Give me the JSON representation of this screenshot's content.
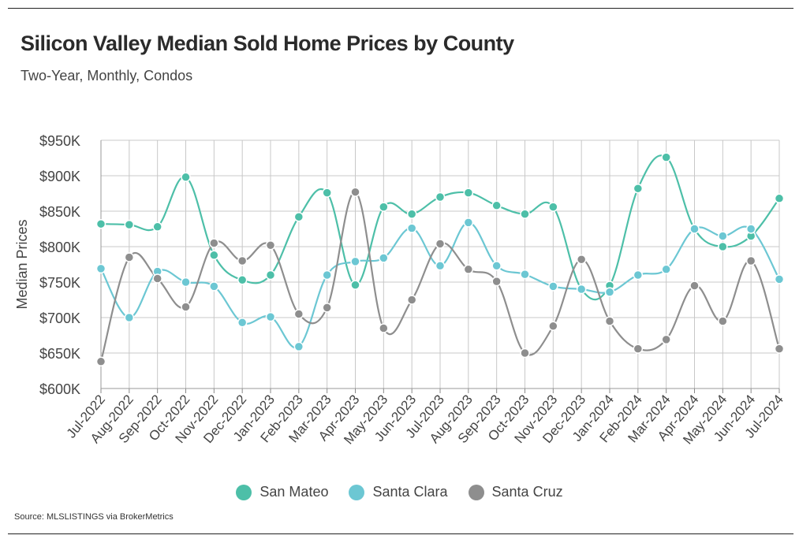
{
  "header": {
    "title": "Silicon Valley Median Sold Home Prices by County",
    "subtitle": "Two-Year, Monthly, Condos"
  },
  "source": "Source:  MLSLISTINGS via BrokerMetrics",
  "chart_data": {
    "type": "line",
    "title": "Silicon Valley Median Sold Home Prices by County",
    "subtitle": "Two-Year, Monthly, Condos",
    "xlabel": "",
    "ylabel": "Median Prices",
    "ylim": [
      600,
      950
    ],
    "yticks": [
      600,
      650,
      700,
      750,
      800,
      850,
      900,
      950
    ],
    "ytick_labels": [
      "$600K",
      "$650K",
      "$700K",
      "$750K",
      "$800K",
      "$850K",
      "$900K",
      "$950K"
    ],
    "grid": true,
    "legend_position": "bottom",
    "categories": [
      "Jul-2022",
      "Aug-2022",
      "Sep-2022",
      "Oct-2022",
      "Nov-2022",
      "Dec-2022",
      "Jan-2023",
      "Feb-2023",
      "Mar-2023",
      "Apr-2023",
      "May-2023",
      "Jun-2023",
      "Jul-2023",
      "Aug-2023",
      "Sep-2023",
      "Oct-2023",
      "Nov-2023",
      "Dec-2023",
      "Jan-2024",
      "Feb-2024",
      "Mar-2024",
      "Apr-2024",
      "May-2024",
      "Jun-2024",
      "Jul-2024"
    ],
    "series": [
      {
        "name": "San Mateo",
        "color": "#4dbfa8",
        "values": [
          832,
          831,
          828,
          898,
          788,
          753,
          760,
          842,
          876,
          746,
          856,
          846,
          870,
          876,
          858,
          846,
          856,
          740,
          745,
          882,
          926,
          825,
          800,
          815,
          868
        ]
      },
      {
        "name": "Santa Clara",
        "color": "#6cc7d3",
        "values": [
          769,
          700,
          765,
          750,
          744,
          693,
          701,
          659,
          760,
          779,
          784,
          826,
          773,
          834,
          773,
          761,
          744,
          740,
          736,
          760,
          768,
          825,
          815,
          825,
          754
        ]
      },
      {
        "name": "Santa Cruz",
        "color": "#8e8e8e",
        "values": [
          638,
          785,
          755,
          715,
          805,
          780,
          802,
          705,
          714,
          877,
          685,
          725,
          804,
          768,
          751,
          650,
          688,
          782,
          695,
          656,
          669,
          745,
          695,
          780,
          656
        ]
      }
    ]
  }
}
